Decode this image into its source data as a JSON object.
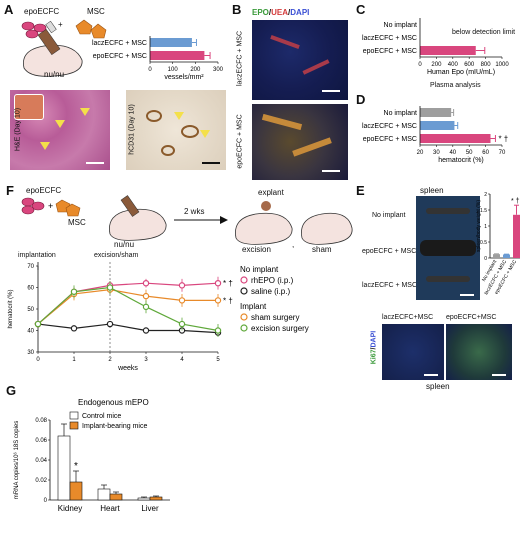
{
  "panel_labels": {
    "A": "A",
    "B": "B",
    "C": "C",
    "D": "D",
    "E": "E",
    "F": "F",
    "G": "G"
  },
  "panelA": {
    "cell1": "epoECFC",
    "plus": "+",
    "cell2": "MSC",
    "mouse": "nu/nu",
    "img1_label": "H&E (Day 10)",
    "img2_label": "hCD31 (Day 10)"
  },
  "panelB": {
    "stain_epo": "EPO",
    "slash1": "/",
    "stain_uea": "UEA",
    "slash2": "/",
    "stain_dapi": "DAPI",
    "row1": "laczECFC + MSC",
    "row2": "epoECFC + MSC"
  },
  "panelC": {
    "note": "below detection limit",
    "subtitle": "Plasma analysis"
  },
  "panelE": {
    "spleen_title": "spleen",
    "rows": [
      "No implant",
      "epoECFC + MSC",
      "laczECFC + MSC"
    ],
    "ki_label1": "laczECFC+MSC",
    "ki_label2": "epoECFC+MSC",
    "stain_ki": "Ki67",
    "slash": "/",
    "stain_dapi": "DAPI",
    "bottom": "spleen"
  },
  "panelF": {
    "cell1": "epoECFC",
    "cell2": "MSC",
    "mouse": "nu/nu",
    "arrow": "2 wks",
    "explant": "explant",
    "excision": "excision",
    "comma": ",",
    "sham": "sham",
    "implantation": "implantation",
    "excision_sham": "excision/sham"
  },
  "colors": {
    "pink": "#d9467e",
    "blue": "#6b9bd2",
    "gray": "#9e9e9e",
    "orange": "#e88a2a",
    "green": "#5fa83a",
    "black": "#222222"
  },
  "chart_data": [
    {
      "id": "A",
      "type": "bar",
      "orientation": "horizontal",
      "categories": [
        "laczECFC + MSC",
        "epoECFC + MSC"
      ],
      "values": [
        185,
        240
      ],
      "errors": [
        20,
        25
      ],
      "colors": [
        "#6b9bd2",
        "#d9467e"
      ],
      "xlabel": "vessels/mm²",
      "xlim": [
        0,
        300
      ],
      "xticks": [
        0,
        100,
        200,
        300
      ]
    },
    {
      "id": "C",
      "type": "bar",
      "orientation": "horizontal",
      "categories": [
        "No implant",
        "laczECFC + MSC",
        "epoECFC + MSC"
      ],
      "values": [
        0,
        0,
        680
      ],
      "errors": [
        0,
        0,
        110
      ],
      "colors": [
        "#9e9e9e",
        "#6b9bd2",
        "#d9467e"
      ],
      "xlabel": "Human Epo (mIU/mL)",
      "xlim": [
        0,
        1000
      ],
      "xticks": [
        0,
        200,
        400,
        600,
        800,
        1000
      ]
    },
    {
      "id": "D",
      "type": "bar",
      "orientation": "horizontal",
      "categories": [
        "No implant",
        "laczECFC + MSC",
        "epoECFC + MSC"
      ],
      "values": [
        39,
        41,
        63
      ],
      "errors": [
        1.5,
        2,
        3
      ],
      "colors": [
        "#9e9e9e",
        "#6b9bd2",
        "#d9467e"
      ],
      "annotation": "* †",
      "xlabel": "hematocrit (%)",
      "xlim": [
        20,
        70
      ],
      "xticks": [
        20,
        30,
        40,
        50,
        60,
        70
      ]
    },
    {
      "id": "E",
      "type": "bar",
      "categories": [
        "No implant",
        "laczECFC + MSC",
        "epoECFC + MSC"
      ],
      "values": [
        0.12,
        0.11,
        1.35
      ],
      "errors": [
        0.01,
        0.01,
        0.3
      ],
      "colors": [
        "#9e9e9e",
        "#6b9bd2",
        "#d9467e"
      ],
      "annotation": "* †",
      "ylabel": "spleen/body weight (%)",
      "ylim": [
        0,
        2
      ],
      "yticks": [
        0,
        0.5,
        1,
        1.5,
        2
      ],
      "ytick_labels": [
        "0",
        "0.5",
        "1",
        "1.5",
        "2"
      ]
    },
    {
      "id": "F",
      "type": "line",
      "x": [
        0,
        1,
        2,
        3,
        4,
        5
      ],
      "xlabel": "weeks",
      "ylabel": "hematocrit (%)",
      "ylim": [
        30,
        70
      ],
      "yticks": [
        30,
        40,
        50,
        60,
        70
      ],
      "legend_groups": [
        {
          "title": "No implant",
          "members": [
            "rhEPO (i.p.)",
            "saline (i.p.)"
          ]
        },
        {
          "title": "Implant",
          "members": [
            "sham surgery",
            "excision surgery"
          ]
        }
      ],
      "series": [
        {
          "name": "rhEPO (i.p.)",
          "color": "#d9467e",
          "values": [
            43,
            58,
            61,
            62,
            61,
            62
          ],
          "errors": [
            1,
            2,
            2,
            2,
            3,
            3
          ],
          "annotation": "* †"
        },
        {
          "name": "saline (i.p.)",
          "color": "#222222",
          "values": [
            43,
            41,
            43,
            40,
            40,
            39
          ],
          "errors": [
            1,
            1,
            1,
            1,
            1,
            1
          ]
        },
        {
          "name": "sham surgery",
          "color": "#e88a2a",
          "values": [
            43,
            57,
            59,
            56,
            54,
            54
          ],
          "errors": [
            1,
            3,
            2,
            3,
            3,
            3
          ],
          "annotation": "* †"
        },
        {
          "name": "excision surgery",
          "color": "#5fa83a",
          "values": [
            43,
            58,
            60,
            51,
            43,
            40
          ],
          "errors": [
            1,
            3,
            3,
            3,
            3,
            3
          ]
        }
      ]
    },
    {
      "id": "G",
      "type": "bar",
      "title": "Endogenous mEPO",
      "categories": [
        "Kidney",
        "Heart",
        "Liver"
      ],
      "series": [
        {
          "name": "Control mice",
          "color": "#ffffff",
          "values": [
            0.064,
            0.011,
            0.002
          ],
          "errors": [
            0.012,
            0.004,
            0.001
          ]
        },
        {
          "name": "Implant-bearing mice",
          "color": "#e88a2a",
          "values": [
            0.018,
            0.006,
            0.003
          ],
          "errors": [
            0.011,
            0.002,
            0.001
          ]
        }
      ],
      "annotation": "*",
      "ylabel": "mRNA copies/10⁶ 18S copies",
      "ylim": [
        0,
        0.08
      ],
      "yticks": [
        0,
        0.02,
        0.04,
        0.06,
        0.08
      ],
      "ytick_labels": [
        "0",
        "0.02",
        "0.04",
        "0.06",
        "0.08"
      ]
    }
  ]
}
